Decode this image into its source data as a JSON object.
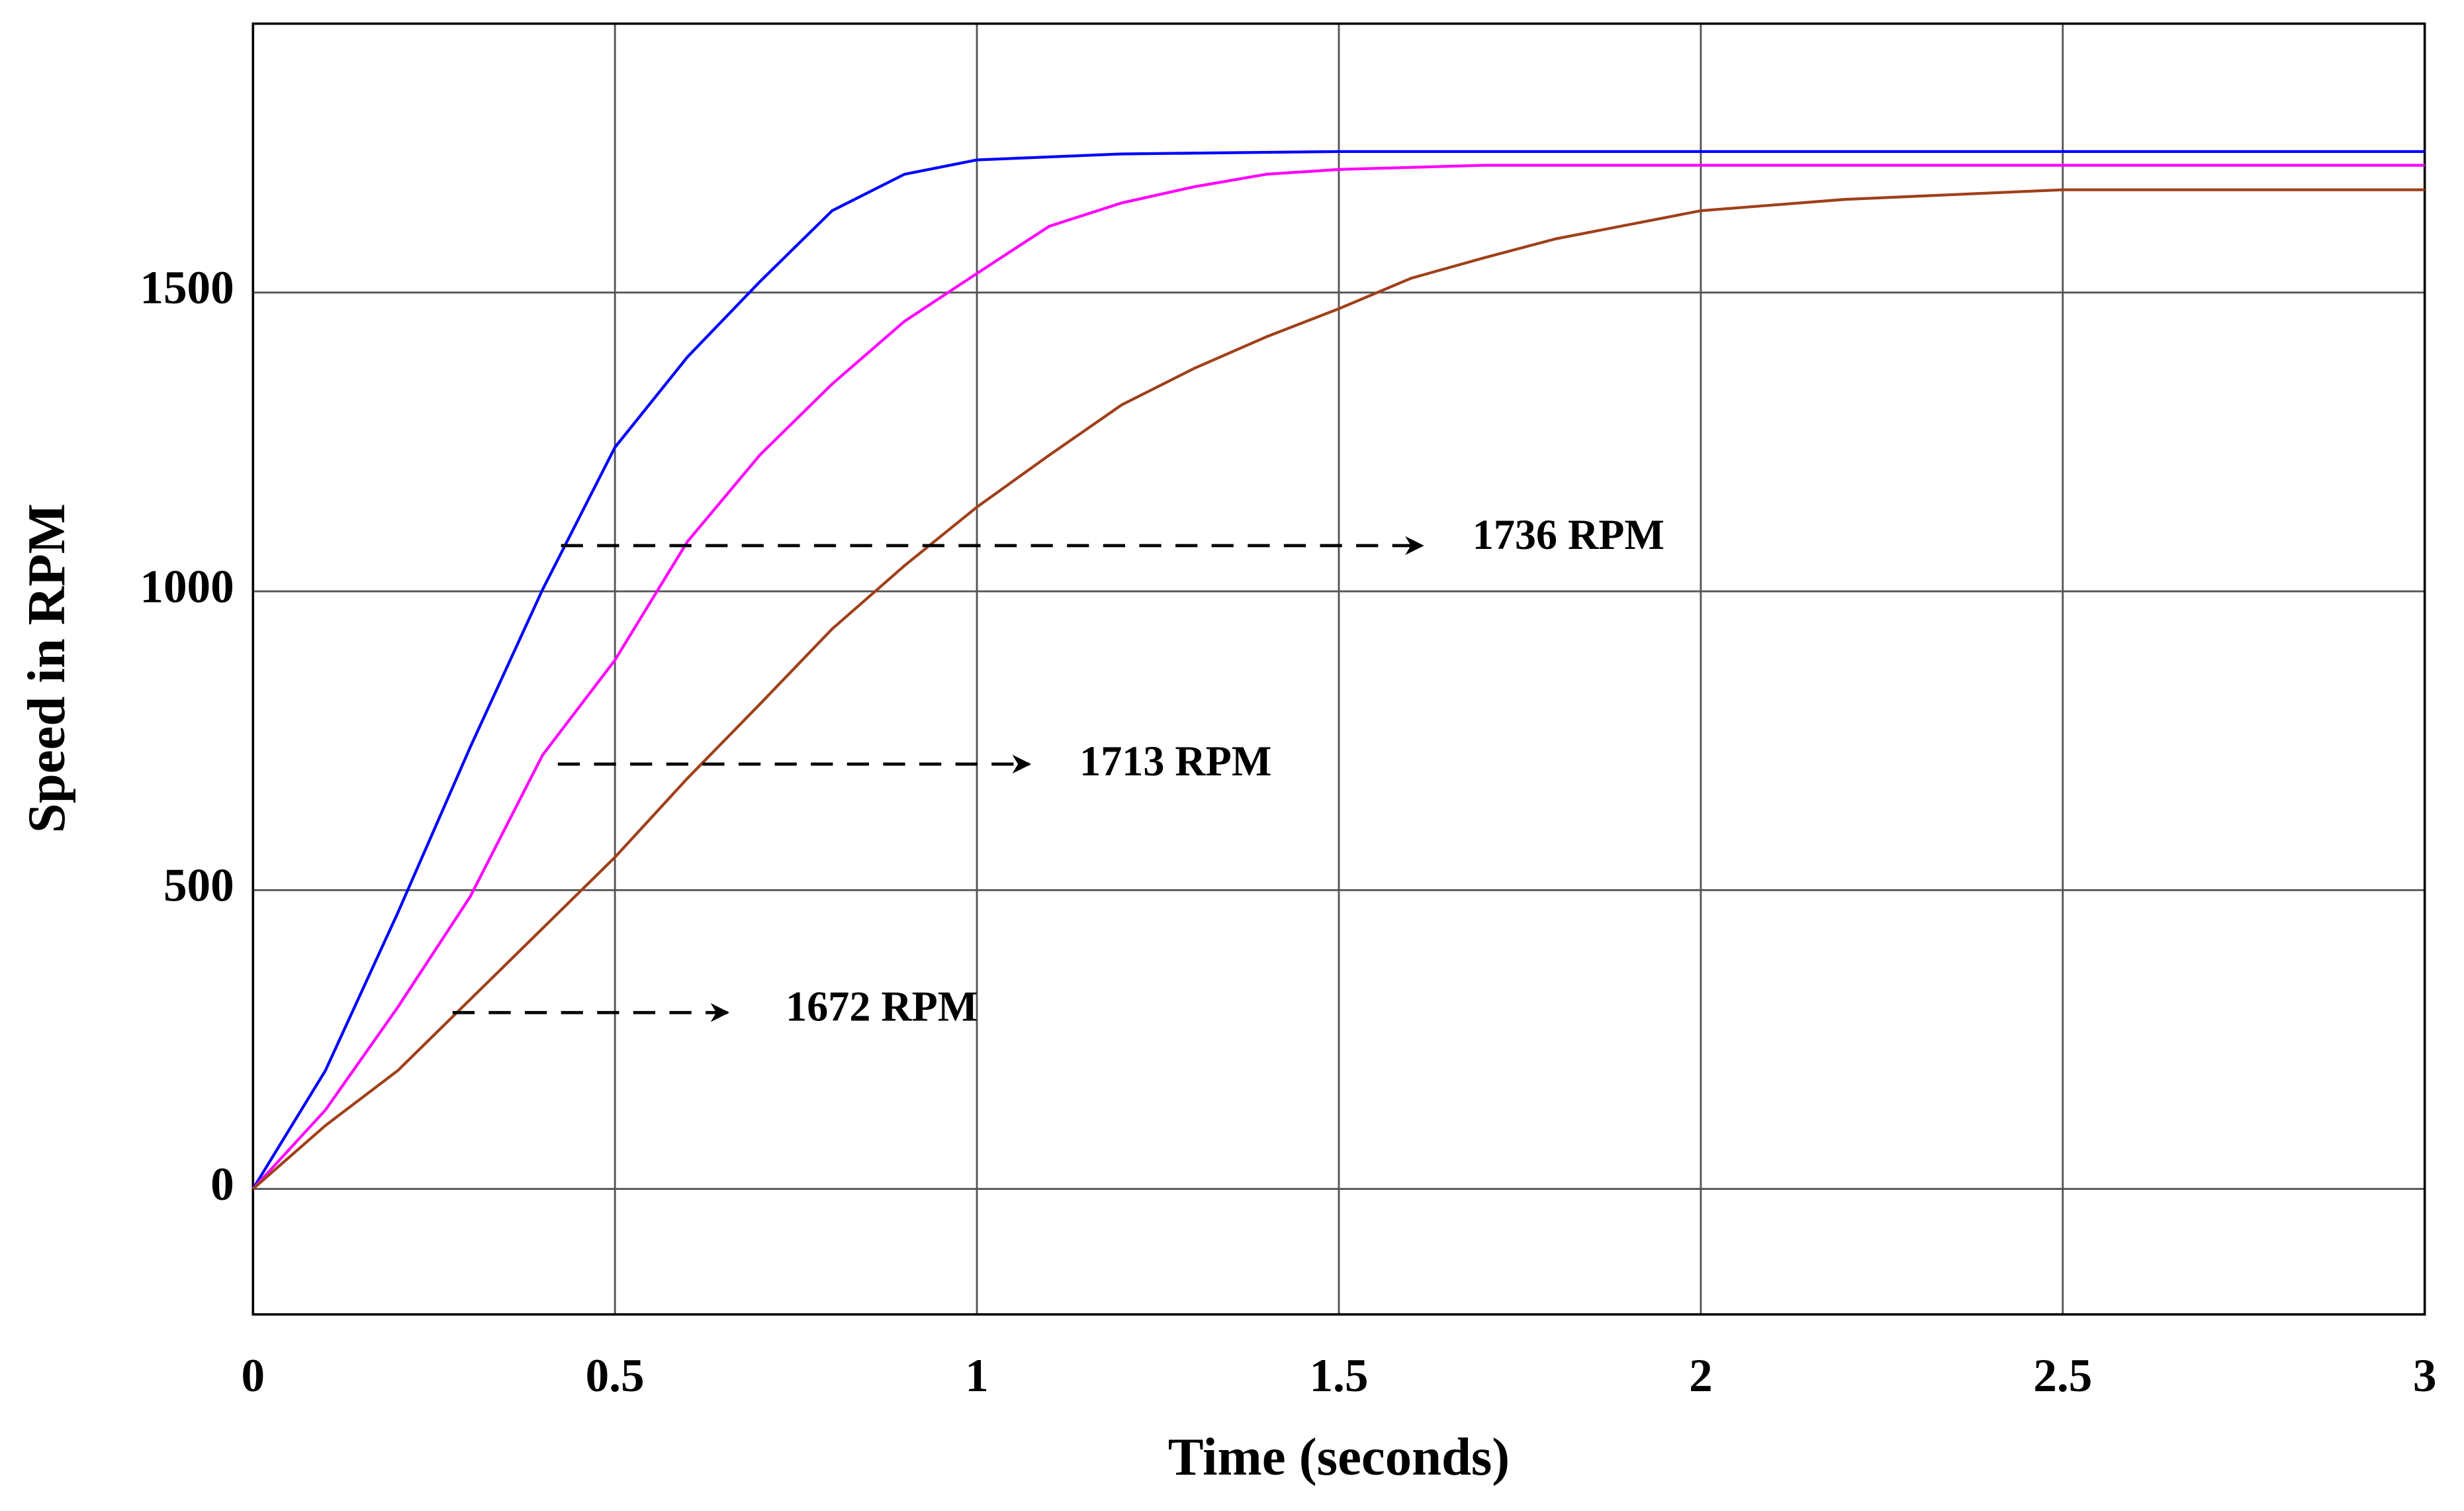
{
  "chart_data": {
    "type": "line",
    "xlabel": "Time (seconds)",
    "ylabel": "Speed in RPM",
    "xlim": [
      0,
      3
    ],
    "ylim": [
      -210,
      1950
    ],
    "xticks": [
      0,
      0.5,
      1,
      1.5,
      2,
      2.5,
      3
    ],
    "yticks": [
      0,
      500,
      1000,
      1500
    ],
    "grid": true,
    "series": [
      {
        "color": "#0000ff",
        "x": [
          0,
          0.1,
          0.2,
          0.3,
          0.4,
          0.5,
          0.6,
          0.7,
          0.8,
          0.9,
          1.0,
          1.2,
          1.5,
          2.0,
          2.5,
          3.0
        ],
        "values": [
          0,
          198,
          462,
          739,
          1003,
          1241,
          1392,
          1518,
          1637,
          1698,
          1722,
          1732,
          1736,
          1736,
          1736,
          1736
        ]
      },
      {
        "color": "#ff00ff",
        "x": [
          0,
          0.1,
          0.2,
          0.3,
          0.4,
          0.5,
          0.6,
          0.7,
          0.8,
          0.9,
          1.0,
          1.1,
          1.2,
          1.3,
          1.4,
          1.5,
          1.7,
          2.0,
          2.5,
          3.0
        ],
        "values": [
          0,
          132,
          304,
          489,
          726,
          885,
          1083,
          1228,
          1347,
          1452,
          1532,
          1611,
          1650,
          1677,
          1698,
          1706,
          1713,
          1713,
          1713,
          1713
        ]
      },
      {
        "color": "#a0401a",
        "x": [
          0,
          0.1,
          0.2,
          0.3,
          0.4,
          0.5,
          0.6,
          0.7,
          0.8,
          0.9,
          1.0,
          1.1,
          1.2,
          1.3,
          1.4,
          1.5,
          1.6,
          1.7,
          1.8,
          2.0,
          2.2,
          2.5,
          3.0
        ],
        "values": [
          0,
          106,
          198,
          317,
          436,
          555,
          687,
          811,
          937,
          1043,
          1141,
          1228,
          1312,
          1373,
          1426,
          1473,
          1524,
          1558,
          1590,
          1637,
          1656,
          1672,
          1672
        ]
      }
    ],
    "annotations": [
      "1736 RPM",
      "1713 RPM",
      "1672 RPM"
    ]
  }
}
